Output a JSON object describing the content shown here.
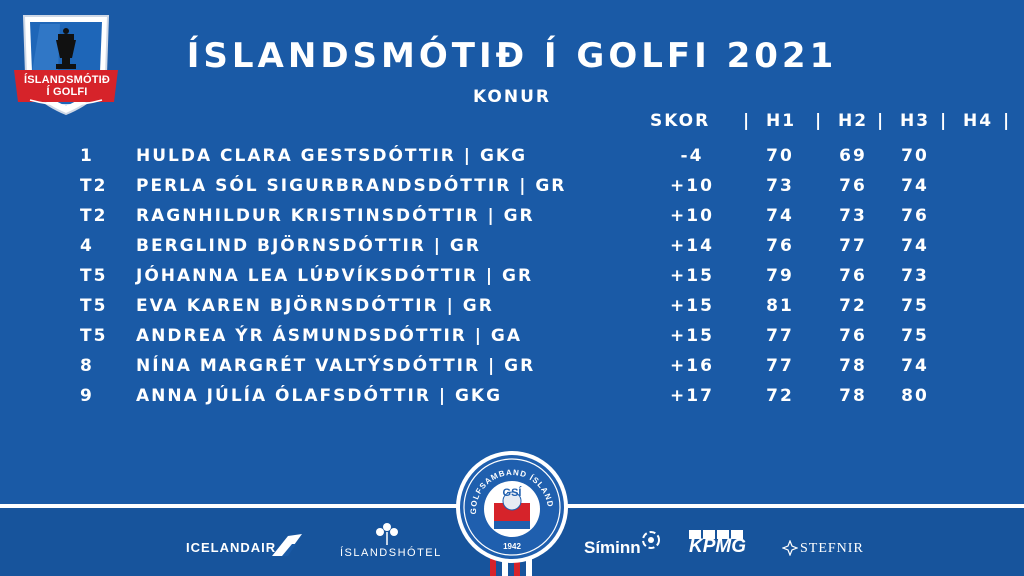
{
  "logo": {
    "line1": "ÍSLANDSMÓTIÐ",
    "line2": "Í GOLFI"
  },
  "title": "ÍSLANDSMÓTIÐ Í GOLFI 2021",
  "subtitle": "KONUR",
  "headers": {
    "skor": "SKOR",
    "sep1": "|",
    "h1": "H1",
    "sep2": "|",
    "h2": "H2",
    "sep3": "|",
    "h3": "H3",
    "sep4": "|",
    "h4": "H4",
    "sep5": "|"
  },
  "rows": [
    {
      "pos": "1",
      "name": "HULDA CLARA GESTSDÓTTIR |  GKG",
      "skor": "-4",
      "h1": "70",
      "h2": "69",
      "h3": "70"
    },
    {
      "pos": "T2",
      "name": "PERLA SÓL SIGURBRANDSDÓTTIR | GR",
      "skor": "+10",
      "h1": "73",
      "h2": "76",
      "h3": "74"
    },
    {
      "pos": "T2",
      "name": "RAGNHILDUR KRISTINSDÓTTIR | GR",
      "skor": "+10",
      "h1": "74",
      "h2": "73",
      "h3": "76"
    },
    {
      "pos": "4",
      "name": "BERGLIND BJÖRNSDÓTTIR | GR",
      "skor": "+14",
      "h1": "76",
      "h2": "77",
      "h3": "74"
    },
    {
      "pos": "T5",
      "name": "JÓHANNA LEA LÚÐVÍKSDÓTTIR | GR",
      "skor": "+15",
      "h1": "79",
      "h2": "76",
      "h3": "73"
    },
    {
      "pos": "T5",
      "name": "EVA KAREN BJÖRNSDÓTTIR | GR",
      "skor": "+15",
      "h1": "81",
      "h2": "72",
      "h3": "75"
    },
    {
      "pos": "T5",
      "name": "ANDREA ÝR ÁSMUNDSDÓTTIR | GA",
      "skor": "+15",
      "h1": "77",
      "h2": "76",
      "h3": "75"
    },
    {
      "pos": "8",
      "name": "NÍNA MARGRÉT VALTÝSDÓTTIR | GR",
      "skor": "+16",
      "h1": "77",
      "h2": "78",
      "h3": "74"
    },
    {
      "pos": "9",
      "name": "ANNA JÚLÍA ÓLAFSDÓTTIR | GKG",
      "skor": "+17",
      "h1": "72",
      "h2": "78",
      "h3": "80"
    }
  ],
  "gsi": {
    "ring_text": "GOLFSAMBAND ÍSLANDS",
    "badge": "GSÍ",
    "year": "1942"
  },
  "sponsors": {
    "icelandair": "ICELANDAIR",
    "hotel": "ÍSLANDSHÓTEL",
    "siminn": "Síminn",
    "kpmg": "KPMG",
    "stefnir": "STEFNIR"
  },
  "colors": {
    "background": "#1a5aa6",
    "accent_red": "#d6232a",
    "text": "#ffffff"
  }
}
